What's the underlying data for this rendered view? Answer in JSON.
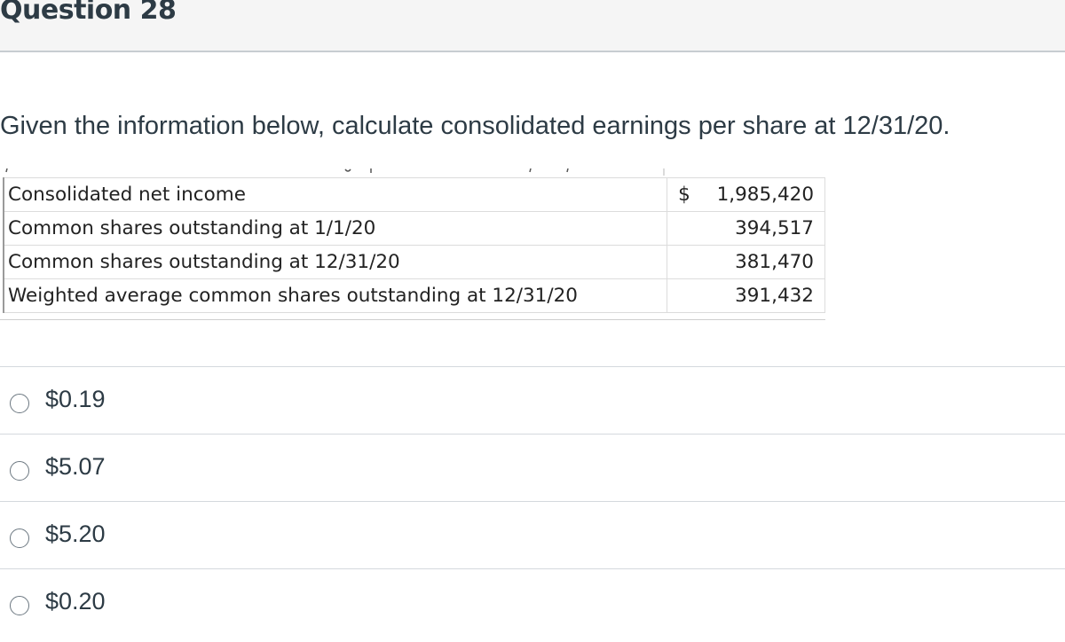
{
  "question": {
    "title": "Question 28",
    "prompt": "Given the information below, calculate consolidated earnings per share at 12/31/20."
  },
  "table": {
    "rows": [
      {
        "label": "Consolidated net income",
        "currency": "$",
        "value": "1,985,420"
      },
      {
        "label": "Common shares outstanding at 1/1/20",
        "currency": "",
        "value": "394,517"
      },
      {
        "label": "Common shares outstanding at 12/31/20",
        "currency": "",
        "value": "381,470"
      },
      {
        "label": "Weighted average common shares outstanding at 12/31/20",
        "currency": "",
        "value": "391,432"
      }
    ]
  },
  "answers": [
    {
      "label": "$0.19",
      "selected": false
    },
    {
      "label": "$5.07",
      "selected": false
    },
    {
      "label": "$5.20",
      "selected": false
    },
    {
      "label": "$0.20",
      "selected": false
    }
  ]
}
